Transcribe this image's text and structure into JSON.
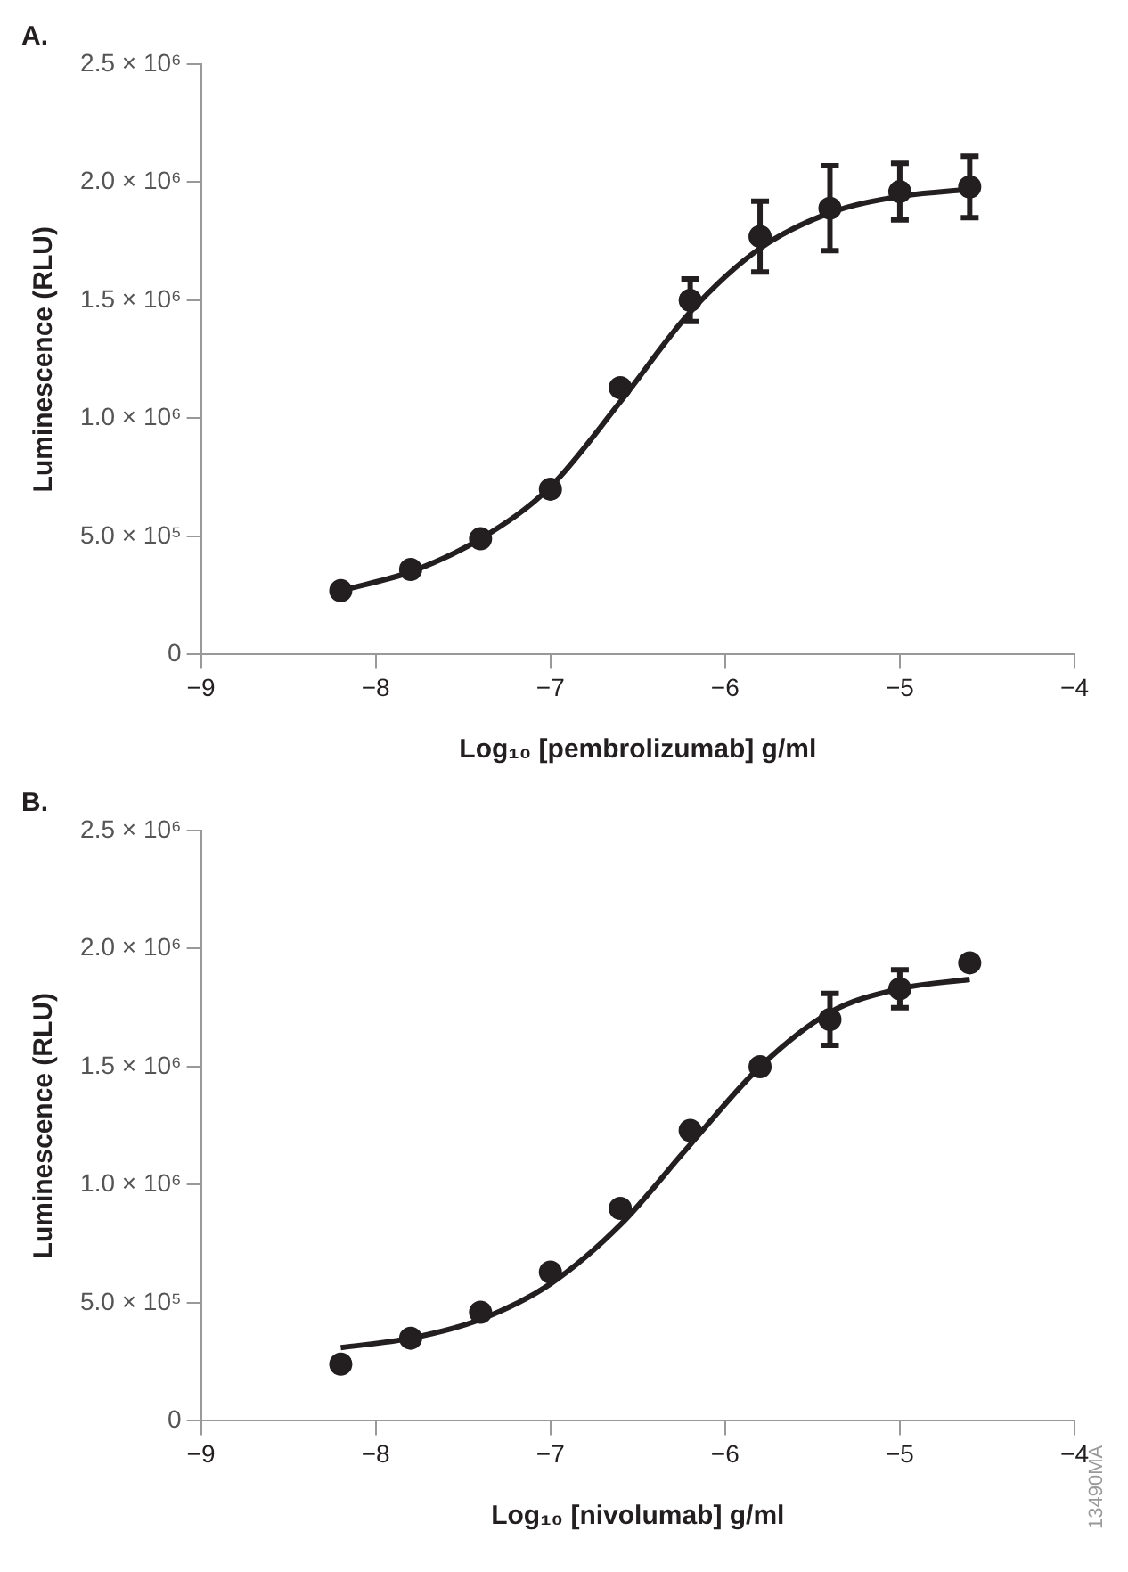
{
  "chart_data": [
    {
      "type": "scatter",
      "title": "A.",
      "xlabel": "Log₁₀ [pembrolizumab] g/ml",
      "ylabel": "Luminescence (RLU)",
      "xlim": [
        -9,
        -4
      ],
      "xticks": [
        {
          "value": -9,
          "label": "−9"
        },
        {
          "value": -8,
          "label": "−8"
        },
        {
          "value": -7,
          "label": "−7"
        },
        {
          "value": -6,
          "label": "−6"
        },
        {
          "value": -5,
          "label": "−5"
        },
        {
          "value": -4,
          "label": "−4"
        }
      ],
      "ylim": [
        0,
        2500000
      ],
      "yticks": [
        0,
        {
          "value": 500000,
          "label": "5.0 × 10⁵"
        },
        {
          "value": 1000000,
          "label": "1.0 × 10⁶"
        },
        {
          "value": 1500000,
          "label": "1.5 × 10⁶"
        },
        {
          "value": 2000000,
          "label": "2.0 × 10⁶"
        },
        {
          "value": 2500000,
          "label": "2.5 × 10⁶"
        }
      ],
      "grid": false,
      "marker": "circle",
      "series": [
        {
          "type": "scatter",
          "color": "#231f20",
          "x": [
            -8.2,
            -7.8,
            -7.4,
            -7.0,
            -6.6,
            -6.2,
            -5.8,
            -5.4,
            -5.0,
            -4.6
          ],
          "values": [
            270000,
            360000,
            490000,
            700000,
            1130000,
            1500000,
            1770000,
            1890000,
            1960000,
            1980000
          ],
          "errors": [
            null,
            null,
            null,
            null,
            null,
            90000,
            150000,
            180000,
            120000,
            130000
          ]
        },
        {
          "type": "line",
          "color": "#231f20",
          "marker": "none",
          "x": [
            -8.2,
            -7.8,
            -7.4,
            -7.0,
            -6.6,
            -6.2,
            -5.8,
            -5.4,
            -5.0,
            -4.6
          ],
          "values": [
            270000,
            350000,
            490000,
            710000,
            1070000,
            1450000,
            1720000,
            1870000,
            1940000,
            1970000
          ]
        }
      ]
    },
    {
      "type": "scatter",
      "title": "B.",
      "xlabel": "Log₁₀ [nivolumab] g/ml",
      "ylabel": "Luminescence (RLU)",
      "xlim": [
        -9,
        -4
      ],
      "xticks": [
        {
          "value": -9,
          "label": "−9"
        },
        {
          "value": -8,
          "label": "−8"
        },
        {
          "value": -7,
          "label": "−7"
        },
        {
          "value": -6,
          "label": "−6"
        },
        {
          "value": -5,
          "label": "−5"
        },
        {
          "value": -4,
          "label": "−4"
        }
      ],
      "ylim": [
        0,
        2500000
      ],
      "yticks": [
        0,
        {
          "value": 500000,
          "label": "5.0 × 10⁵"
        },
        {
          "value": 1000000,
          "label": "1.0 × 10⁶"
        },
        {
          "value": 1500000,
          "label": "1.5 × 10⁶"
        },
        {
          "value": 2000000,
          "label": "2.0 × 10⁶"
        },
        {
          "value": 2500000,
          "label": "2.5 × 10⁶"
        }
      ],
      "grid": false,
      "marker": "circle",
      "annotations": [
        "13490MA"
      ],
      "series": [
        {
          "type": "scatter",
          "color": "#231f20",
          "x": [
            -8.2,
            -7.8,
            -7.4,
            -7.0,
            -6.6,
            -6.2,
            -5.8,
            -5.4,
            -5.0,
            -4.6
          ],
          "values": [
            240000,
            350000,
            460000,
            630000,
            900000,
            1230000,
            1500000,
            1700000,
            1830000,
            1940000
          ],
          "errors": [
            null,
            null,
            null,
            null,
            null,
            null,
            null,
            110000,
            80000,
            null
          ]
        },
        {
          "type": "line",
          "color": "#231f20",
          "marker": "none",
          "x": [
            -8.2,
            -7.8,
            -7.4,
            -7.0,
            -6.6,
            -6.2,
            -5.8,
            -5.4,
            -5.0,
            -4.6
          ],
          "values": [
            310000,
            350000,
            430000,
            580000,
            830000,
            1170000,
            1500000,
            1730000,
            1830000,
            1870000
          ]
        }
      ]
    }
  ]
}
